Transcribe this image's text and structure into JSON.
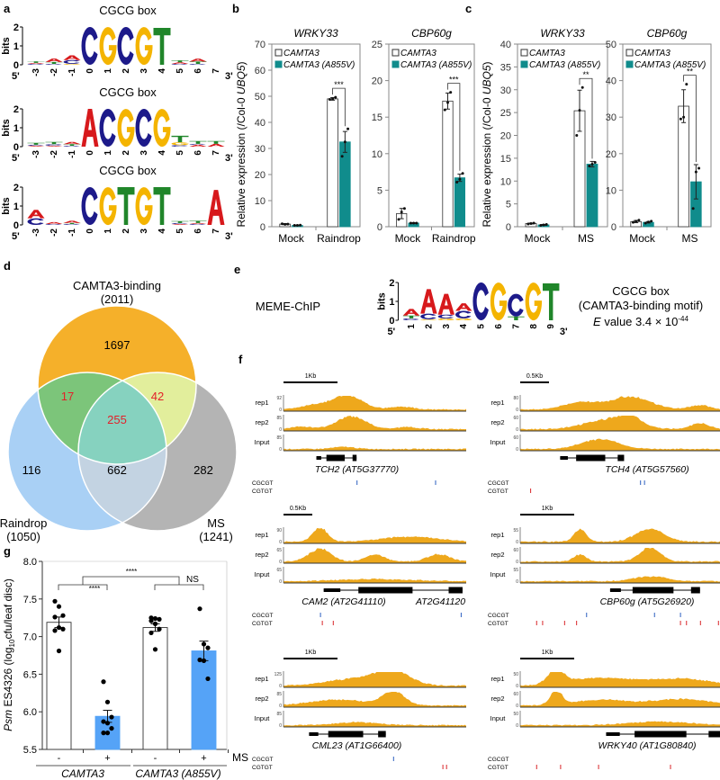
{
  "panel_labels": {
    "a": "a",
    "b": "b",
    "c": "c",
    "d": "d",
    "e": "e",
    "f": "f",
    "g": "g"
  },
  "panel_a": {
    "logos": [
      {
        "title": "CGCG box",
        "ylabel": "bits",
        "yticks": [
          "2",
          "1",
          "0"
        ],
        "positions": [
          "-3",
          "-2",
          "-1",
          "0",
          "1",
          "2",
          "3",
          "4",
          "5",
          "6",
          "7"
        ],
        "five_prime": "5'",
        "three_prime": "3'",
        "stacks": [
          [
            [
              "C",
              0.05
            ],
            [
              "A",
              0.05
            ],
            [
              "T",
              0.08
            ]
          ],
          [
            [
              "C",
              0.05
            ],
            [
              "T",
              0.1
            ],
            [
              "A",
              0.18
            ]
          ],
          [
            [
              "G",
              0.05
            ],
            [
              "C",
              0.2
            ],
            [
              "A",
              0.25
            ]
          ],
          [
            [
              "C",
              2
            ]
          ],
          [
            [
              "G",
              2
            ]
          ],
          [
            [
              "C",
              2
            ]
          ],
          [
            [
              "G",
              2
            ]
          ],
          [
            [
              "T",
              1.95
            ]
          ],
          [
            [
              "C",
              0.05
            ],
            [
              "A",
              0.08
            ],
            [
              "T",
              0.1
            ]
          ],
          [
            [
              "C",
              0.05
            ],
            [
              "T",
              0.12
            ],
            [
              "A",
              0.15
            ]
          ],
          []
        ]
      },
      {
        "title": "CGCG box",
        "ylabel": "bits",
        "yticks": [
          "2",
          "1",
          "0"
        ],
        "positions": [
          "-3",
          "-2",
          "-1",
          "0",
          "1",
          "2",
          "3",
          "4",
          "5",
          "6",
          "7"
        ],
        "five_prime": "5'",
        "three_prime": "3'",
        "stacks": [
          [
            [
              "A",
              0.05
            ],
            [
              "C",
              0.05
            ],
            [
              "T",
              0.1
            ]
          ],
          [
            [
              "A",
              0.05
            ],
            [
              "C",
              0.08
            ],
            [
              "T",
              0.12
            ]
          ],
          [
            [
              "C",
              0.05
            ],
            [
              "T",
              0.08
            ],
            [
              "A",
              0.12
            ]
          ],
          [
            [
              "A",
              2
            ]
          ],
          [
            [
              "C",
              2
            ]
          ],
          [
            [
              "G",
              2
            ]
          ],
          [
            [
              "C",
              2
            ]
          ],
          [
            [
              "G",
              2
            ]
          ],
          [
            [
              "C",
              0.08
            ],
            [
              "G",
              0.15
            ],
            [
              "T",
              0.35
            ]
          ],
          [
            [
              "A",
              0.1
            ],
            [
              "C",
              0.05
            ],
            [
              "T",
              0.15
            ]
          ],
          [
            [
              "A",
              0.15
            ],
            [
              "T",
              0.15
            ]
          ]
        ]
      },
      {
        "title": "CGCG box",
        "ylabel": "bits",
        "yticks": [
          "2",
          "1",
          "0"
        ],
        "positions": [
          "-3",
          "-2",
          "-1",
          "0",
          "1",
          "2",
          "3",
          "4",
          "5",
          "6",
          "7"
        ],
        "five_prime": "5'",
        "three_prime": "3'",
        "stacks": [
          [
            [
              "C",
              0.35
            ],
            [
              "A",
              0.45
            ]
          ],
          [
            [
              "C",
              0.05
            ],
            [
              "A",
              0.1
            ]
          ],
          [
            [
              "C",
              0.05
            ],
            [
              "T",
              0.05
            ],
            [
              "A",
              0.12
            ]
          ],
          [
            [
              "C",
              2
            ]
          ],
          [
            [
              "G",
              2
            ]
          ],
          [
            [
              "T",
              2
            ]
          ],
          [
            [
              "G",
              2
            ]
          ],
          [
            [
              "T",
              2
            ]
          ],
          [
            [
              "A",
              0.05
            ],
            [
              "C",
              0.05
            ],
            [
              "T",
              0.1
            ]
          ],
          [
            [
              "C",
              0.05
            ],
            [
              "A",
              0.05
            ],
            [
              "T",
              0.12
            ]
          ],
          [
            [
              "A",
              1.85
            ]
          ]
        ]
      }
    ]
  },
  "letter_colors": {
    "A": "#d7191c",
    "C": "#1d1a8a",
    "G": "#f4b400",
    "T": "#20862a"
  },
  "chart_data": [
    {
      "id": "b-wrky33",
      "panel": "b",
      "type": "bar",
      "title": "WRKY33",
      "ylabel_pre": "Relative expression (/Col-0 ",
      "ylabel_it": "UBQ5",
      "ylabel_post": ")",
      "ylim": [
        0,
        70
      ],
      "ytick_step": 10,
      "categories": [
        "Mock",
        "Raindrop"
      ],
      "series": [
        {
          "name": "CAMTA3",
          "color": "#ffffff",
          "values": [
            1.0,
            49.0
          ],
          "errors": [
            0.2,
            0.5
          ],
          "points": [
            [
              1.1,
              0.9,
              1.0
            ],
            [
              48.8,
              49.0,
              49.6
            ]
          ]
        },
        {
          "name": "CAMTA3 (A855V)",
          "color": "#108c8c",
          "values": [
            0.5,
            32.5
          ],
          "errors": [
            0.1,
            4.0
          ],
          "points": [
            [
              0.5,
              0.5,
              0.6
            ],
            [
              27.0,
              32.5,
              37.5
            ]
          ]
        }
      ],
      "significance": [
        "",
        "***"
      ]
    },
    {
      "id": "b-cbp60g",
      "panel": "b",
      "type": "bar",
      "title": "CBP60g",
      "ylim": [
        0,
        25
      ],
      "ytick_step": 5,
      "categories": [
        "Mock",
        "Raindrop"
      ],
      "series": [
        {
          "name": "CAMTA3",
          "color": "#ffffff",
          "values": [
            1.8,
            17.2
          ],
          "errors": [
            0.7,
            1.1
          ],
          "points": [
            [
              1.0,
              2.0,
              2.5
            ],
            [
              16.0,
              17.0,
              18.4
            ]
          ]
        },
        {
          "name": "CAMTA3 (A855V)",
          "color": "#108c8c",
          "values": [
            0.5,
            6.7
          ],
          "errors": [
            0.05,
            0.5
          ],
          "points": [
            [
              0.5,
              0.5,
              0.5
            ],
            [
              6.1,
              6.5,
              7.3
            ]
          ]
        }
      ],
      "significance": [
        "",
        "***"
      ]
    },
    {
      "id": "c-wrky33",
      "panel": "c",
      "type": "bar",
      "title": "WRKY33",
      "ylabel_pre": "Relative expression (/Col-0 ",
      "ylabel_it": "UBQ5",
      "ylabel_post": ")",
      "ylim": [
        0,
        40
      ],
      "ytick_step": 5,
      "categories": [
        "Mock",
        "MS"
      ],
      "series": [
        {
          "name": "CAMTA3",
          "color": "#ffffff",
          "values": [
            0.7,
            25.4
          ],
          "errors": [
            0.1,
            4.5
          ],
          "points": [
            [
              0.6,
              0.7,
              0.8
            ],
            [
              20.0,
              25.5,
              30.5
            ]
          ]
        },
        {
          "name": "CAMTA3 (A855V)",
          "color": "#108c8c",
          "values": [
            0.4,
            13.7
          ],
          "errors": [
            0.1,
            0.6
          ],
          "points": [
            [
              0.3,
              0.4,
              0.5
            ],
            [
              13.3,
              13.7,
              14.1
            ]
          ]
        }
      ],
      "significance": [
        "",
        "**"
      ]
    },
    {
      "id": "c-cbp60g",
      "panel": "c",
      "type": "bar",
      "title": "CBP60g",
      "ylim": [
        0,
        50
      ],
      "ytick_step": 10,
      "categories": [
        "Mock",
        "MS"
      ],
      "series": [
        {
          "name": "CAMTA3",
          "color": "#ffffff",
          "values": [
            1.4,
            33.0
          ],
          "errors": [
            0.3,
            4.5
          ],
          "points": [
            [
              1.2,
              1.5,
              1.8
            ],
            [
              29.5,
              30.0,
              39.0
            ]
          ]
        },
        {
          "name": "CAMTA3 (A855V)",
          "color": "#108c8c",
          "values": [
            1.2,
            12.3
          ],
          "errors": [
            0.2,
            4.7
          ],
          "points": [
            [
              1.0,
              1.3,
              1.5
            ],
            [
              5.0,
              15.0,
              16.0
            ]
          ]
        }
      ],
      "significance": [
        "",
        "**"
      ]
    },
    {
      "id": "g-psm",
      "panel": "g",
      "type": "bar",
      "ylabel_it": "Psm",
      "ylabel_post": " ES4326 (log",
      "ylabel_sub": "10",
      "ylabel_end": "cfu/leaf disc)",
      "ylim": [
        5.5,
        8.0
      ],
      "yticks": [
        "5.5",
        "6.0",
        "6.5",
        "7.0",
        "7.5",
        "8.0"
      ],
      "categories": [
        "-",
        "+",
        "-",
        "+"
      ],
      "groups": [
        "CAMTA3",
        "CAMTA3 (A855V)"
      ],
      "treatment_label": "MS",
      "colors": [
        "#ffffff",
        "#55a3f7",
        "#ffffff",
        "#55a3f7"
      ],
      "values": [
        7.19,
        5.94,
        7.12,
        6.81
      ],
      "errors": [
        0.07,
        0.08,
        0.05,
        0.13
      ],
      "points": [
        [
          7.47,
          7.4,
          7.28,
          7.26,
          7.12,
          7.1,
          7.08,
          6.81
        ],
        [
          6.4,
          6.13,
          5.93,
          5.87,
          5.85,
          5.78,
          5.72,
          5.72
        ],
        [
          7.25,
          7.24,
          7.23,
          7.21,
          7.17,
          7.1,
          7.05,
          6.83
        ],
        [
          7.37,
          6.9,
          6.85,
          6.69,
          6.68,
          6.44
        ]
      ],
      "significance": [
        {
          "between": "CAMTA3 - vs +",
          "label": "****"
        },
        {
          "between": "CAMTA3 vs CAMTA3 (A855V)",
          "label": "****"
        },
        {
          "between": "CAMTA3 (A855V) - vs +",
          "label": "NS"
        }
      ]
    }
  ],
  "panel_d": {
    "sets": [
      {
        "name": "CAMTA3-binding",
        "count": "(2011)",
        "color": "#f5b02a"
      },
      {
        "name": "Raindrop",
        "count": "(1050)",
        "color": "#a9d0f5"
      },
      {
        "name": "MS",
        "count": "(1241)",
        "color": "#b4b4b4"
      }
    ],
    "regions": {
      "binding_only": "1697",
      "raindrop_only": "116",
      "ms_only": "282",
      "binding_raindrop": "17",
      "binding_ms": "42",
      "all_three": "255",
      "raindrop_ms": "662"
    },
    "highlight_color": "#e3202a"
  },
  "panel_e": {
    "method": "MEME-ChIP",
    "ylabel": "bits",
    "yticks": [
      "2",
      "1",
      "0"
    ],
    "positions": [
      "1",
      "2",
      "3",
      "4",
      "5",
      "6",
      "7",
      "8",
      "9"
    ],
    "five_prime": "5'",
    "three_prime": "3'",
    "stacks": [
      [
        [
          "C",
          0.1
        ],
        [
          "T",
          0.15
        ],
        [
          "A",
          0.35
        ]
      ],
      [
        [
          "G",
          0.05
        ],
        [
          "C",
          0.3
        ],
        [
          "A",
          1.3
        ]
      ],
      [
        [
          "G",
          0.1
        ],
        [
          "C",
          0.2
        ],
        [
          "A",
          1.1
        ]
      ],
      [
        [
          "G",
          0.1
        ],
        [
          "C",
          0.4
        ],
        [
          "A",
          0.4
        ]
      ],
      [
        [
          "C",
          2
        ]
      ],
      [
        [
          "G",
          2
        ]
      ],
      [
        [
          "T",
          0.2
        ],
        [
          "C",
          1.2
        ]
      ],
      [
        [
          "G",
          2
        ]
      ],
      [
        [
          "T",
          1.95
        ]
      ]
    ],
    "motif_name": "CGCG box",
    "motif_desc": "(CAMTA3-binding motif)",
    "evalue_e": "E",
    "evalue_text": " value 3.4 × 10",
    "evalue_exp": "-44"
  },
  "panel_f": {
    "track_color": "#eea81c",
    "motif_labels": [
      "CGCGT",
      "CGTGT"
    ],
    "cgcgt_color": "#2b5fc0",
    "cgtgt_color": "#d9262a",
    "loci": [
      {
        "scale": "1Kb",
        "tracks": [
          {
            "label": "rep1",
            "max": "92",
            "min": "0"
          },
          {
            "label": "rep2",
            "max": "85",
            "min": "0"
          },
          {
            "label": "Input",
            "max": "85",
            "min": "0"
          }
        ],
        "genes": [
          "TCH2 (AT5G37770)"
        ]
      },
      {
        "scale": "0.5Kb",
        "tracks": [
          {
            "label": "rep1",
            "max": "80",
            "min": "0"
          },
          {
            "label": "rep2",
            "max": "60",
            "min": "0"
          },
          {
            "label": "Input",
            "max": "60",
            "min": "0"
          }
        ],
        "genes": [
          "TCH4 (AT5G57560)"
        ]
      },
      {
        "scale": "0.5Kb",
        "tracks": [
          {
            "label": "rep1",
            "max": "90",
            "min": "0"
          },
          {
            "label": "rep2",
            "max": "65",
            "min": "0"
          },
          {
            "label": "Input",
            "max": "65",
            "min": "0"
          }
        ],
        "genes": [
          "CAM2 (AT2G41110)",
          "AT2G41120"
        ]
      },
      {
        "scale": "1Kb",
        "tracks": [
          {
            "label": "rep1",
            "max": "55",
            "min": "0"
          },
          {
            "label": "rep2",
            "max": "60",
            "min": "0"
          },
          {
            "label": "Input",
            "max": "55",
            "min": "0"
          }
        ],
        "genes": [
          "CBP60g (AT5G26920)"
        ]
      },
      {
        "scale": "1Kb",
        "tracks": [
          {
            "label": "rep1",
            "max": "125",
            "min": "0"
          },
          {
            "label": "rep2",
            "max": "85",
            "min": "0"
          },
          {
            "label": "Input",
            "max": "85",
            "min": "0"
          }
        ],
        "genes": [
          "CML23 (AT1G66400)"
        ]
      },
      {
        "scale": "1Kb",
        "tracks": [
          {
            "label": "rep1",
            "max": "50",
            "min": "0"
          },
          {
            "label": "rep2",
            "max": "60",
            "min": "0"
          },
          {
            "label": "Input",
            "max": "50",
            "min": "0"
          }
        ],
        "genes": [
          "WRKY40 (AT1G80840)"
        ]
      }
    ]
  }
}
